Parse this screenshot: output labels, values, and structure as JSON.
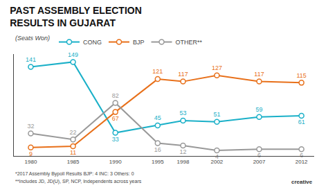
{
  "chart_data": {
    "type": "line",
    "title": "PAST ASSEMBLY ELECTION\nRESULTS IN GUJARAT",
    "subtitle": "(Seats Won)",
    "x": [
      1980,
      1985,
      1990,
      1995,
      1998,
      2002,
      2007,
      2012
    ],
    "series": [
      {
        "name": "CONG",
        "color": "#1ab0c8",
        "values": [
          141,
          149,
          33,
          45,
          53,
          51,
          59,
          61
        ]
      },
      {
        "name": "BJP",
        "color": "#e8701a",
        "values": [
          9,
          11,
          67,
          121,
          117,
          127,
          117,
          115
        ]
      },
      {
        "name": "OTHER**",
        "color": "#999999",
        "values": [
          32,
          22,
          82,
          16,
          12,
          4,
          6,
          6
        ]
      }
    ],
    "xlim": [
      1978,
      2013.5
    ],
    "xticks": [
      1980,
      1985,
      1990,
      1995,
      1998,
      2002,
      2007,
      2012
    ],
    "ylim": [
      -5,
      162
    ],
    "yticks": [],
    "grid": false,
    "legend": "top",
    "data_labels": true,
    "tick_labels": "x",
    "marker": "circle",
    "annotations": [
      "*2017 Assembly Bypoll Results BJP: 4 INC: 3 Others: 0",
      "**Includes JD, JD(U), SP, NCP, Independents across years",
      "creative"
    ]
  }
}
